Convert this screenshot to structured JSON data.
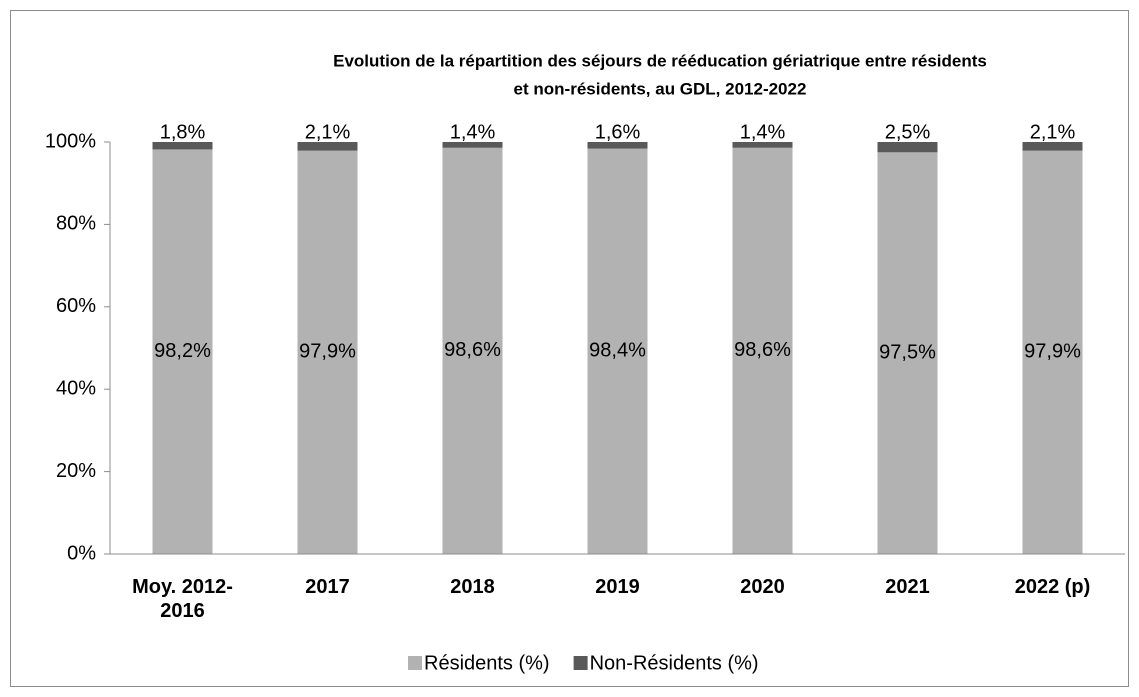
{
  "chart_data": {
    "type": "stacked_bar",
    "title": [
      "Evolution de la répartition des séjours de rééducation gériatrique entre résidents",
      "et non-résidents, au GDL, 2012-2022"
    ],
    "categories": [
      "Moy. 2012-2016",
      "2017",
      "2018",
      "2019",
      "2020",
      "2021",
      "2022 (p)"
    ],
    "series": [
      {
        "name": "Résidents (%)",
        "color": "#b2b2b2",
        "values": [
          98.2,
          97.9,
          98.6,
          98.4,
          98.6,
          97.5,
          97.9
        ],
        "value_labels": [
          "98,2%",
          "97,9%",
          "98,6%",
          "98,4%",
          "98,6%",
          "97,5%",
          "97,9%"
        ]
      },
      {
        "name": "Non-Résidents (%)",
        "color": "#595959",
        "values": [
          1.8,
          2.1,
          1.4,
          1.6,
          1.4,
          2.5,
          2.1
        ],
        "value_labels": [
          "1,8%",
          "2,1%",
          "1,4%",
          "1,6%",
          "1,4%",
          "2,5%",
          "2,1%"
        ]
      }
    ],
    "ylim": [
      0,
      100
    ],
    "yticks": [
      {
        "value": 0,
        "label": "0%"
      },
      {
        "value": 20,
        "label": "20%"
      },
      {
        "value": 40,
        "label": "40%"
      },
      {
        "value": 60,
        "label": "60%"
      },
      {
        "value": 80,
        "label": "80%"
      },
      {
        "value": 100,
        "label": "100%"
      }
    ],
    "legend": "bottom"
  }
}
